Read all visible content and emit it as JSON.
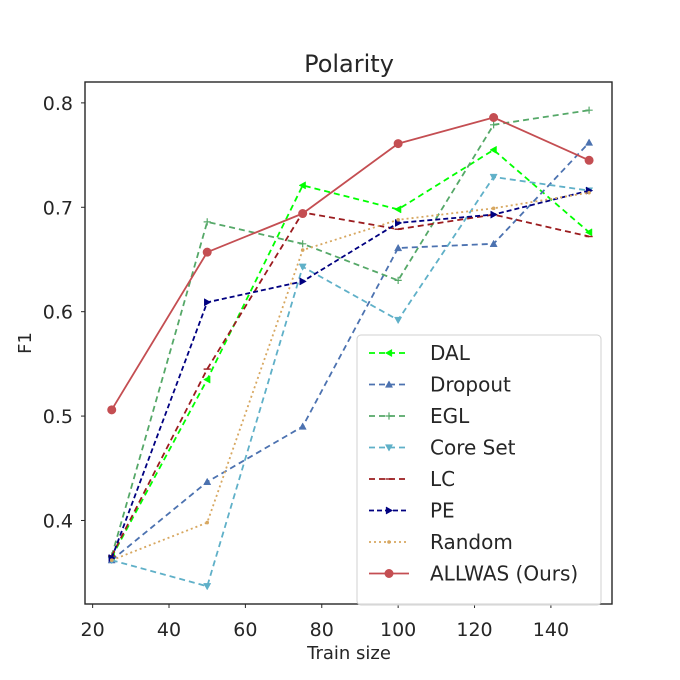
{
  "chart_data": {
    "type": "line",
    "title": "Polarity",
    "xlabel": "Train size",
    "ylabel": "F1",
    "xlim": [
      18,
      156
    ],
    "ylim": [
      0.32,
      0.82
    ],
    "xticks": [
      20,
      40,
      60,
      80,
      100,
      120,
      140
    ],
    "yticks": [
      0.4,
      0.5,
      0.6,
      0.7,
      0.8
    ],
    "grid": false,
    "legend_position": "lower-right",
    "x": [
      25,
      50,
      75,
      100,
      125,
      150
    ],
    "series": [
      {
        "name": "DAL",
        "color": "#00ff00",
        "dash": "6,4",
        "marker": "tri-left",
        "values": [
          0.365,
          0.535,
          0.721,
          0.698,
          0.755,
          0.676
        ]
      },
      {
        "name": "Dropout",
        "color": "#4c72b0",
        "dash": "6,4",
        "marker": "tri-up",
        "values": [
          0.362,
          0.437,
          0.49,
          0.661,
          0.665,
          0.762
        ]
      },
      {
        "name": "EGL",
        "color": "#55a868",
        "dash": "6,4",
        "marker": "plus",
        "values": [
          0.366,
          0.686,
          0.665,
          0.63,
          0.779,
          0.793
        ]
      },
      {
        "name": "Core Set",
        "color": "#5fb0c8",
        "dash": "6,4",
        "marker": "tri-down",
        "values": [
          0.362,
          0.337,
          0.643,
          0.592,
          0.729,
          0.716
        ]
      },
      {
        "name": "LC",
        "color": "#9b1c1f",
        "dash": "6,4",
        "marker": "tick",
        "values": [
          0.366,
          0.545,
          0.695,
          0.679,
          0.693,
          0.672
        ]
      },
      {
        "name": "PE",
        "color": "#000080",
        "dash": "5,3",
        "marker": "tri-right",
        "values": [
          0.364,
          0.609,
          0.629,
          0.685,
          0.693,
          0.716
        ]
      },
      {
        "name": "Random",
        "color": "#d7a760",
        "dash": "2,3",
        "marker": "dot",
        "values": [
          0.362,
          0.398,
          0.659,
          0.688,
          0.699,
          0.714
        ]
      },
      {
        "name": "ALLWAS (Ours)",
        "color": "#c44e52",
        "dash": "",
        "marker": "circle",
        "values": [
          0.506,
          0.657,
          0.694,
          0.761,
          0.786,
          0.745
        ]
      }
    ]
  }
}
